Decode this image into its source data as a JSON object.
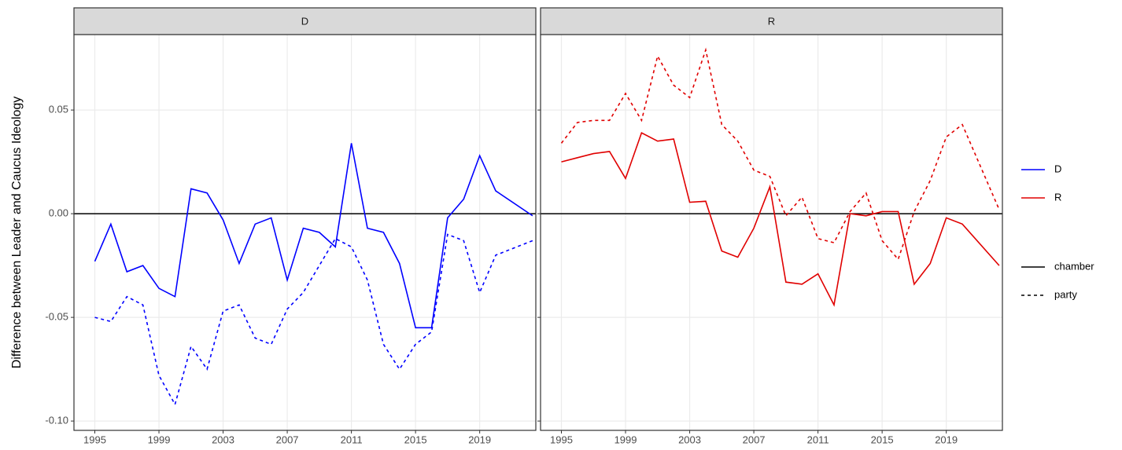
{
  "chart_data": {
    "type": "line",
    "ylabel": "Difference between Leader and Caucus Ideology",
    "x": [
      1995,
      1996,
      1997,
      1998,
      1999,
      2000,
      2001,
      2002,
      2003,
      2004,
      2005,
      2006,
      2007,
      2008,
      2009,
      2010,
      2011,
      2012,
      2013,
      2014,
      2015,
      2016,
      2017,
      2018,
      2019,
      2020,
      2022.3
    ],
    "xlim": [
      1993.7,
      2022.5
    ],
    "xticks": [
      1995,
      1999,
      2003,
      2007,
      2011,
      2015,
      2019
    ],
    "ylim": [
      -0.1045,
      0.0864
    ],
    "yticks": [
      {
        "value": -0.1,
        "label": "-0.10"
      },
      {
        "value": -0.05,
        "label": "-0.05"
      },
      {
        "value": 0,
        "label": "0.00"
      },
      {
        "value": 0.05,
        "label": "0.05"
      }
    ],
    "hline": 0,
    "grid": true,
    "panels": [
      {
        "title": "D",
        "series": [
          {
            "name": "chamber",
            "color": "#0000ff",
            "linestyle": "solid",
            "values": [
              -0.023,
              -0.005,
              -0.028,
              -0.025,
              -0.036,
              -0.04,
              0.012,
              0.01,
              -0.003,
              -0.024,
              -0.005,
              -0.002,
              -0.032,
              -0.007,
              -0.009,
              -0.016,
              0.034,
              -0.007,
              -0.009,
              -0.024,
              -0.055,
              -0.055,
              -0.002,
              0.007,
              0.028,
              0.011,
              -0.001
            ]
          },
          {
            "name": "party",
            "color": "#0000ff",
            "linestyle": "dashed",
            "values": [
              -0.05,
              -0.052,
              -0.04,
              -0.044,
              -0.078,
              -0.092,
              -0.064,
              -0.075,
              -0.047,
              -0.044,
              -0.06,
              -0.063,
              -0.046,
              -0.038,
              -0.025,
              -0.012,
              -0.016,
              -0.032,
              -0.063,
              -0.075,
              -0.063,
              -0.057,
              -0.01,
              -0.013,
              -0.038,
              -0.02,
              -0.013
            ]
          }
        ]
      },
      {
        "title": "R",
        "series": [
          {
            "name": "chamber",
            "color": "#e00000",
            "linestyle": "solid",
            "values": [
              0.025,
              0.027,
              0.029,
              0.03,
              0.017,
              0.039,
              0.035,
              0.036,
              0.0055,
              0.006,
              -0.018,
              -0.021,
              -0.007,
              0.013,
              -0.033,
              -0.034,
              -0.029,
              -0.044,
              0.0,
              -0.001,
              0.001,
              0.001,
              -0.034,
              -0.024,
              -0.002,
              -0.005,
              -0.025
            ]
          },
          {
            "name": "party",
            "color": "#e00000",
            "linestyle": "dashed",
            "values": [
              0.034,
              0.044,
              0.045,
              0.045,
              0.058,
              0.045,
              0.076,
              0.062,
              0.056,
              0.079,
              0.043,
              0.035,
              0.021,
              0.018,
              -0.001,
              0.008,
              -0.012,
              -0.014,
              0.001,
              0.01,
              -0.013,
              -0.022,
              0.001,
              0.016,
              0.037,
              0.043,
              0.002
            ]
          }
        ]
      }
    ],
    "legend": {
      "colors": [
        {
          "name": "D",
          "color": "#0000ff"
        },
        {
          "name": "R",
          "color": "#e00000"
        }
      ],
      "linetypes": [
        {
          "name": "chamber",
          "linestyle": "solid"
        },
        {
          "name": "party",
          "linestyle": "dashed"
        }
      ]
    }
  }
}
